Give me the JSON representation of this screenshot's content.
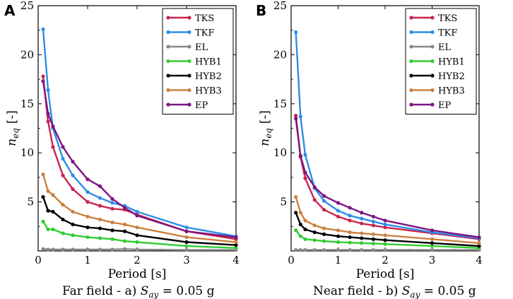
{
  "chart_data": [
    {
      "type": "line",
      "panel": "A",
      "caption": "Far field - a) ",
      "caption_math": "S",
      "caption_sub": "ay",
      "caption_tail": " = 0.05 g",
      "xlabel": "Period [s]",
      "ylabel": "n",
      "ylabel_sub": "eq",
      "ylabel_unit": "[-]",
      "xlim": [
        0,
        4
      ],
      "ylim": [
        0,
        25
      ],
      "xticks": [
        0,
        1,
        2,
        3,
        4
      ],
      "yticks": [
        5,
        10,
        15,
        20,
        25
      ],
      "legend_position": "top-right",
      "series": [
        {
          "name": "TKS",
          "color": "#c8254d",
          "x": [
            0.1,
            0.2,
            0.3,
            0.5,
            0.7,
            1.0,
            1.25,
            1.5,
            1.75,
            2.0,
            3.0,
            4.0
          ],
          "y": [
            17.8,
            13.2,
            10.6,
            7.7,
            6.3,
            5.0,
            4.6,
            4.3,
            4.2,
            3.7,
            2.0,
            1.2
          ]
        },
        {
          "name": "TKF",
          "color": "#2b8ee6",
          "x": [
            0.1,
            0.2,
            0.3,
            0.5,
            0.7,
            1.0,
            1.25,
            1.5,
            1.75,
            2.0,
            3.0,
            4.0
          ],
          "y": [
            22.6,
            16.4,
            12.5,
            9.4,
            7.7,
            6.0,
            5.4,
            4.9,
            4.6,
            4.0,
            2.4,
            1.5
          ]
        },
        {
          "name": "EL",
          "color": "#888888",
          "x": [
            0.1,
            0.2,
            0.3,
            0.5,
            0.7,
            1.0,
            1.25,
            1.5,
            1.75,
            2.0,
            3.0,
            4.0
          ],
          "y": [
            0.2,
            0.15,
            0.15,
            0.15,
            0.15,
            0.15,
            0.15,
            0.15,
            0.2,
            0.15,
            0.1,
            0.1
          ]
        },
        {
          "name": "HYB1",
          "color": "#33cc33",
          "x": [
            0.1,
            0.2,
            0.3,
            0.5,
            0.7,
            1.0,
            1.25,
            1.5,
            1.75,
            2.0,
            3.0,
            4.0
          ],
          "y": [
            3.0,
            2.2,
            2.2,
            1.8,
            1.6,
            1.4,
            1.3,
            1.2,
            1.0,
            0.9,
            0.5,
            0.3
          ]
        },
        {
          "name": "HYB2",
          "color": "#000000",
          "x": [
            0.1,
            0.2,
            0.3,
            0.5,
            0.7,
            1.0,
            1.25,
            1.5,
            1.75,
            2.0,
            3.0,
            4.0
          ],
          "y": [
            5.5,
            4.1,
            4.0,
            3.2,
            2.7,
            2.4,
            2.3,
            2.1,
            2.0,
            1.6,
            0.9,
            0.6
          ]
        },
        {
          "name": "HYB3",
          "color": "#cc8040",
          "x": [
            0.1,
            0.2,
            0.3,
            0.5,
            0.7,
            1.0,
            1.25,
            1.5,
            1.75,
            2.0,
            3.0,
            4.0
          ],
          "y": [
            7.8,
            6.1,
            5.7,
            4.7,
            4.0,
            3.5,
            3.2,
            2.9,
            2.7,
            2.4,
            1.4,
            0.9
          ]
        },
        {
          "name": "EP",
          "color": "#7d1580",
          "x": [
            0.1,
            0.2,
            0.3,
            0.5,
            0.7,
            1.0,
            1.25,
            1.5,
            1.75,
            2.0,
            3.0,
            4.0
          ],
          "y": [
            17.3,
            14.0,
            12.7,
            10.6,
            9.1,
            7.3,
            6.6,
            5.3,
            4.4,
            3.6,
            2.0,
            1.4
          ]
        }
      ]
    },
    {
      "type": "line",
      "panel": "B",
      "caption": "Near field - b) ",
      "caption_math": "S",
      "caption_sub": "ay",
      "caption_tail": " = 0.05 g",
      "xlabel": "Period [s]",
      "ylabel": "n",
      "ylabel_sub": "eq",
      "ylabel_unit": "[-]",
      "xlim": [
        0,
        4
      ],
      "ylim": [
        0,
        25
      ],
      "xticks": [
        0,
        1,
        2,
        3,
        4
      ],
      "yticks": [
        5,
        10,
        15,
        20,
        25
      ],
      "legend_position": "top-right",
      "series": [
        {
          "name": "TKS",
          "color": "#c8254d",
          "x": [
            0.1,
            0.2,
            0.3,
            0.5,
            0.7,
            1.0,
            1.25,
            1.5,
            1.75,
            2.0,
            3.0,
            4.0
          ],
          "y": [
            13.8,
            9.6,
            7.4,
            5.2,
            4.2,
            3.5,
            3.1,
            2.8,
            2.6,
            2.4,
            1.8,
            1.2
          ]
        },
        {
          "name": "TKF",
          "color": "#2b8ee6",
          "x": [
            0.1,
            0.2,
            0.3,
            0.5,
            0.7,
            1.0,
            1.25,
            1.5,
            1.75,
            2.0,
            3.0,
            4.0
          ],
          "y": [
            22.3,
            13.7,
            9.8,
            6.4,
            5.1,
            4.1,
            3.6,
            3.3,
            3.0,
            2.7,
            1.9,
            1.3
          ]
        },
        {
          "name": "EL",
          "color": "#888888",
          "x": [
            0.1,
            0.2,
            0.3,
            0.5,
            0.7,
            1.0,
            1.25,
            1.5,
            1.75,
            2.0,
            3.0,
            4.0
          ],
          "y": [
            0.1,
            0.1,
            0.1,
            0.1,
            0.1,
            0.1,
            0.1,
            0.1,
            0.1,
            0.1,
            0.1,
            0.1
          ]
        },
        {
          "name": "HYB1",
          "color": "#33cc33",
          "x": [
            0.1,
            0.2,
            0.3,
            0.5,
            0.7,
            1.0,
            1.25,
            1.5,
            1.75,
            2.0,
            3.0,
            4.0
          ],
          "y": [
            2.1,
            1.5,
            1.2,
            1.1,
            1.0,
            0.9,
            0.85,
            0.8,
            0.75,
            0.7,
            0.5,
            0.3
          ]
        },
        {
          "name": "HYB2",
          "color": "#000000",
          "x": [
            0.1,
            0.2,
            0.3,
            0.5,
            0.7,
            1.0,
            1.25,
            1.5,
            1.75,
            2.0,
            3.0,
            4.0
          ],
          "y": [
            3.9,
            2.7,
            2.2,
            1.9,
            1.7,
            1.5,
            1.4,
            1.3,
            1.2,
            1.1,
            0.8,
            0.5
          ]
        },
        {
          "name": "HYB3",
          "color": "#cc8040",
          "x": [
            0.1,
            0.2,
            0.3,
            0.5,
            0.7,
            1.0,
            1.25,
            1.5,
            1.75,
            2.0,
            3.0,
            4.0
          ],
          "y": [
            5.5,
            3.9,
            3.1,
            2.6,
            2.3,
            2.1,
            1.9,
            1.8,
            1.7,
            1.6,
            1.2,
            0.8
          ]
        },
        {
          "name": "EP",
          "color": "#7d1580",
          "x": [
            0.1,
            0.2,
            0.3,
            0.5,
            0.7,
            1.0,
            1.25,
            1.5,
            1.75,
            2.0,
            3.0,
            4.0
          ],
          "y": [
            13.5,
            9.7,
            8.0,
            6.5,
            5.6,
            4.9,
            4.4,
            3.9,
            3.5,
            3.1,
            2.1,
            1.4
          ]
        }
      ]
    }
  ]
}
